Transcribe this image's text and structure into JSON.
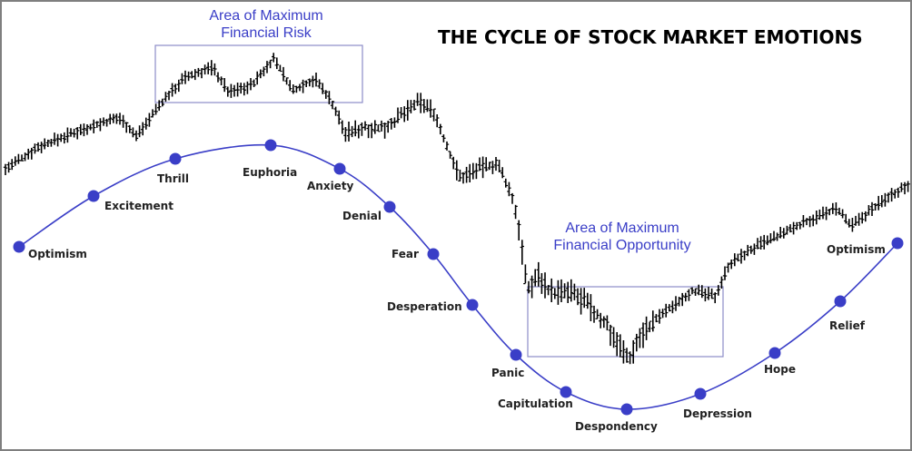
{
  "chart_data": {
    "type": "line",
    "title": "THE CYCLE OF STOCK MARKET EMOTIONS",
    "annotations": [
      {
        "line1": "Area of Maximum",
        "line2": "Financial Risk"
      },
      {
        "line1": "Area of Maximum",
        "line2": "Financial Opportunity"
      }
    ],
    "stages": [
      "Optimism",
      "Excitement",
      "Thrill",
      "Euphoria",
      "Anxiety",
      "Denial",
      "Fear",
      "Desperation",
      "Panic",
      "Capitulation",
      "Despondency",
      "Depression",
      "Hope",
      "Relief",
      "Optimism"
    ],
    "grid": false,
    "legend": "none"
  },
  "colors": {
    "emotion_curve": "#3a3ec7",
    "stage_marker": "#3a3ec7",
    "annotation_text": "#3a3ec7",
    "annotation_box": "#8c8cc8",
    "price_bars": "#000000"
  }
}
